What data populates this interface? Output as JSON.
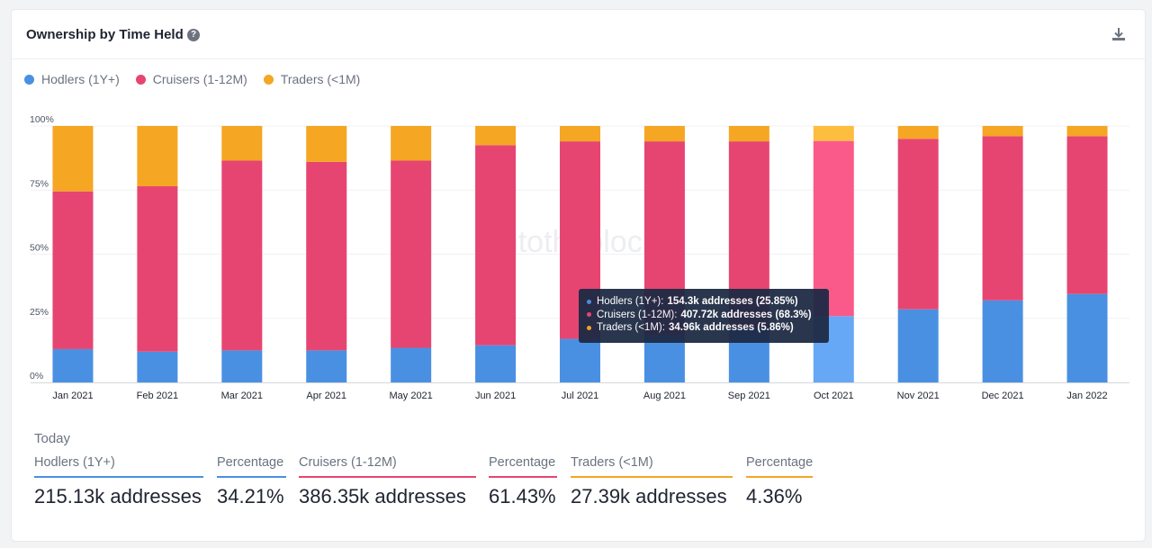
{
  "card": {
    "title": "Ownership by Time Held",
    "help_symbol": "?",
    "download_icon": "download-icon"
  },
  "colors": {
    "hodlers": "#4a90e2",
    "cruisers": "#e64572",
    "traders": "#f5a623",
    "hodlers_hover": "#66a8f5",
    "cruisers_hover": "#fa5a8a",
    "traders_hover": "#fdbd3e"
  },
  "legend": [
    "Hodlers (1Y+)",
    "Cruisers (1-12M)",
    "Traders (<1M)"
  ],
  "tooltip": {
    "rows": [
      {
        "label": "Hodlers (1Y+):",
        "value": "154.3k addresses (25.85%)"
      },
      {
        "label": "Cruisers (1-12M):",
        "value": "407.72k addresses (68.3%)"
      },
      {
        "label": "Traders (<1M):",
        "value": "34.96k addresses (5.86%)"
      }
    ]
  },
  "chart_data": {
    "type": "bar",
    "stacked": true,
    "title": "Ownership by Time Held",
    "categories": [
      "Jan 2021",
      "Feb 2021",
      "Mar 2021",
      "Apr 2021",
      "May 2021",
      "Jun 2021",
      "Jul 2021",
      "Aug 2021",
      "Sep 2021",
      "Oct 2021",
      "Nov 2021",
      "Dec 2021",
      "Jan 2022"
    ],
    "series": [
      {
        "name": "Hodlers (1Y+)",
        "values": [
          13,
          12,
          12.5,
          12.5,
          13.5,
          14.5,
          17,
          18.5,
          21,
          25.85,
          28.5,
          32,
          34.5
        ]
      },
      {
        "name": "Cruisers (1-12M)",
        "values": [
          61.5,
          64.5,
          74,
          73.5,
          73,
          78,
          77,
          75.5,
          73,
          68.3,
          66.5,
          64,
          61.5
        ]
      },
      {
        "name": "Traders (<1M)",
        "values": [
          25.5,
          23.5,
          13.5,
          14,
          13.5,
          7.5,
          6,
          6,
          6,
          5.86,
          5,
          4,
          4
        ]
      }
    ],
    "yticks": [
      "100%",
      "75%",
      "50%",
      "25%",
      "0%"
    ],
    "ylim": [
      0,
      100
    ],
    "highlighted_category": "Oct 2021",
    "watermark": "intotheblock"
  },
  "today": {
    "label": "Today",
    "stats": [
      {
        "label": "Hodlers (1Y+)",
        "value": "215.13k addresses"
      },
      {
        "label": "Percentage",
        "value": "34.21%"
      },
      {
        "label": "Cruisers (1-12M)",
        "value": "386.35k addresses"
      },
      {
        "label": "Percentage",
        "value": "61.43%"
      },
      {
        "label": "Traders (<1M)",
        "value": "27.39k addresses"
      },
      {
        "label": "Percentage",
        "value": "4.36%"
      }
    ]
  }
}
